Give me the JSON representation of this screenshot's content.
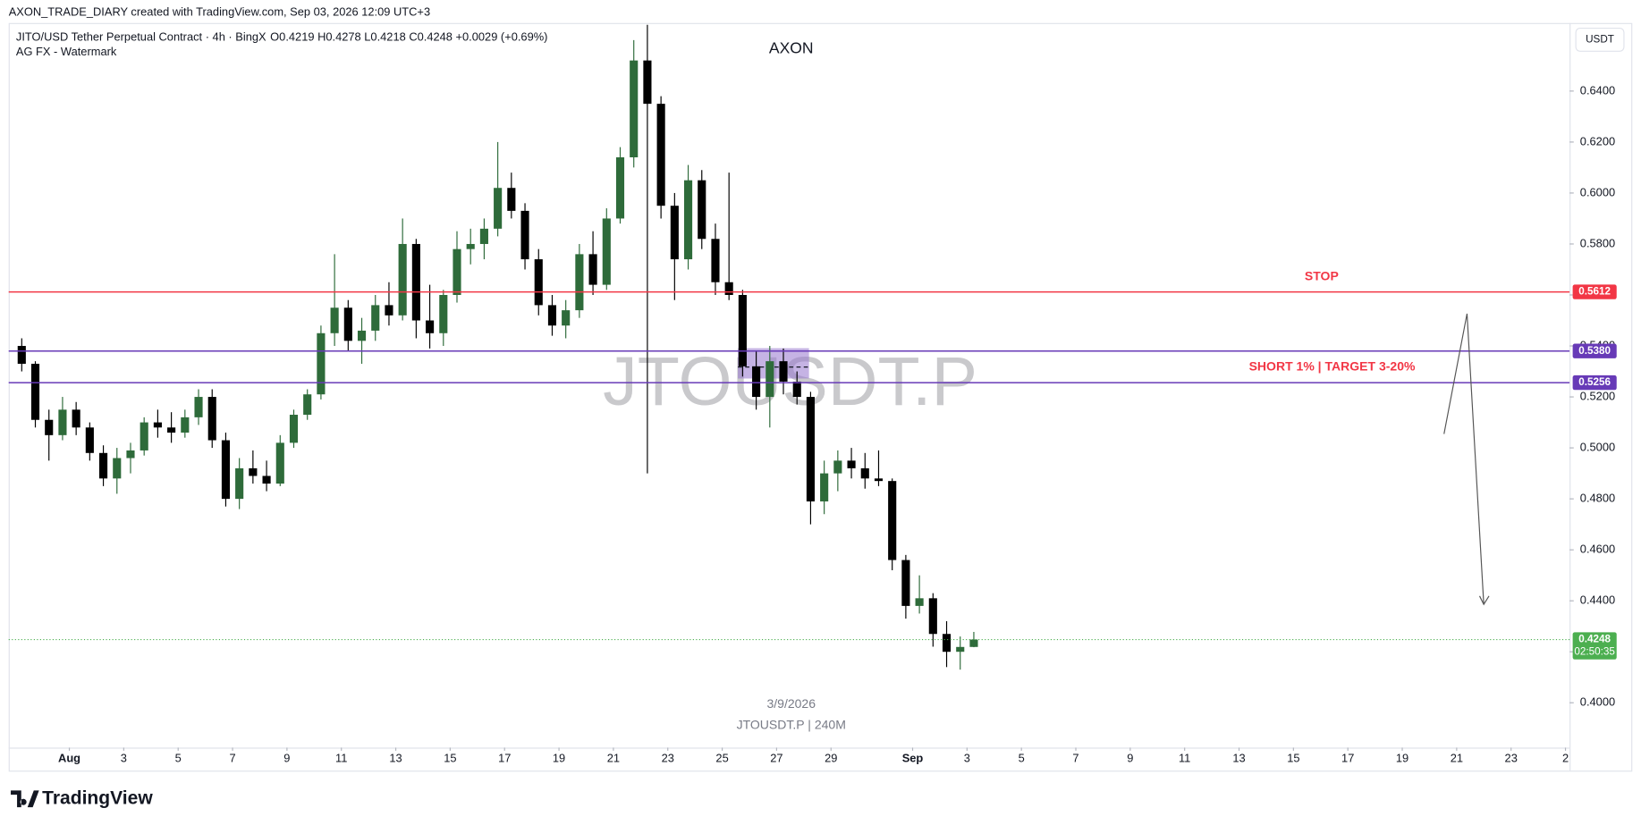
{
  "header": "AXON_TRADE_DIARY created with TradingView.com, Sep 03, 2026 12:09 UTC+3",
  "chart_data": {
    "type": "candlestick",
    "symbol_line": "JITO/USD Tether Perpetual Contract · 4h · BingX",
    "ohlc_line": "O0.4219 H0.4278 L0.4218 C0.4248 +0.0029 (+0.69%)",
    "indicator": "AG FX - Watermark",
    "title": "AXON",
    "watermark": "JTOUSDT.P",
    "date_caption": "3/9/2026",
    "symbol_caption": "JTOUSDT.P | 240M",
    "currency": "USDT",
    "brand": "TradingView",
    "up_color": "#2e6b3a",
    "down_color": "#000000",
    "x": [
      -0.75,
      -0.25,
      0.25,
      0.75,
      1.25,
      1.75,
      2.25,
      2.75,
      3.25,
      3.75,
      4.25,
      4.75,
      5.25,
      5.75,
      6.25,
      6.75,
      7.25,
      7.75,
      8.25,
      8.75,
      9.25,
      9.75,
      10.25,
      10.75,
      11.25,
      11.75,
      12.25,
      12.75,
      13.25,
      13.75,
      14.25,
      14.75,
      15.25,
      15.75,
      16.25,
      16.75,
      17.25,
      17.75,
      18.25,
      18.75,
      19.25,
      19.75,
      20.25,
      20.75,
      21.25,
      21.75,
      22.25,
      22.75,
      23.25,
      23.75,
      24.25,
      24.75,
      25.25,
      25.75,
      26.25,
      26.75,
      27.25,
      27.75,
      28.25,
      28.75,
      29.25,
      29.75,
      30.25,
      30.75,
      31.25,
      31.75,
      32.25,
      32.75,
      33.25,
      33.75,
      34.25
    ],
    "open": [
      0.54,
      0.533,
      0.511,
      0.505,
      0.515,
      0.508,
      0.498,
      0.488,
      0.496,
      0.499,
      0.51,
      0.508,
      0.506,
      0.512,
      0.52,
      0.503,
      0.48,
      0.492,
      0.489,
      0.486,
      0.502,
      0.513,
      0.521,
      0.545,
      0.555,
      0.542,
      0.546,
      0.556,
      0.552,
      0.58,
      0.55,
      0.545,
      0.56,
      0.578,
      0.58,
      0.586,
      0.602,
      0.593,
      0.574,
      0.556,
      0.548,
      0.554,
      0.576,
      0.564,
      0.59,
      0.614,
      0.652,
      0.635,
      0.595,
      0.574,
      0.605,
      0.582,
      0.565,
      0.56,
      0.532,
      0.52,
      0.534,
      0.526,
      0.52,
      0.479,
      0.49,
      0.495,
      0.492,
      0.488,
      0.487,
      0.456,
      0.438,
      0.441,
      0.427,
      0.42,
      0.4219
    ],
    "high": [
      0.543,
      0.534,
      0.515,
      0.52,
      0.518,
      0.51,
      0.501,
      0.5,
      0.502,
      0.512,
      0.515,
      0.514,
      0.515,
      0.523,
      0.523,
      0.506,
      0.496,
      0.499,
      0.495,
      0.505,
      0.515,
      0.523,
      0.548,
      0.576,
      0.558,
      0.551,
      0.56,
      0.565,
      0.59,
      0.582,
      0.564,
      0.562,
      0.585,
      0.586,
      0.59,
      0.62,
      0.608,
      0.596,
      0.578,
      0.56,
      0.558,
      0.58,
      0.585,
      0.594,
      0.618,
      0.66,
      0.666,
      0.638,
      0.6,
      0.611,
      0.609,
      0.588,
      0.608,
      0.562,
      0.538,
      0.54,
      0.539,
      0.53,
      0.522,
      0.495,
      0.499,
      0.5,
      0.498,
      0.499,
      0.488,
      0.458,
      0.45,
      0.443,
      0.432,
      0.426,
      0.4278
    ],
    "low": [
      0.53,
      0.508,
      0.495,
      0.503,
      0.505,
      0.495,
      0.485,
      0.482,
      0.49,
      0.497,
      0.504,
      0.502,
      0.504,
      0.509,
      0.5,
      0.477,
      0.476,
      0.486,
      0.483,
      0.485,
      0.5,
      0.511,
      0.519,
      0.54,
      0.538,
      0.533,
      0.542,
      0.548,
      0.55,
      0.543,
      0.539,
      0.54,
      0.557,
      0.572,
      0.574,
      0.583,
      0.59,
      0.57,
      0.552,
      0.544,
      0.543,
      0.551,
      0.56,
      0.562,
      0.588,
      0.61,
      0.49,
      0.59,
      0.558,
      0.57,
      0.578,
      0.56,
      0.558,
      0.528,
      0.515,
      0.508,
      0.521,
      0.517,
      0.47,
      0.474,
      0.483,
      0.488,
      0.484,
      0.485,
      0.452,
      0.433,
      0.435,
      0.422,
      0.414,
      0.413,
      0.4218
    ],
    "close": [
      0.533,
      0.511,
      0.505,
      0.515,
      0.508,
      0.498,
      0.488,
      0.496,
      0.499,
      0.51,
      0.508,
      0.506,
      0.512,
      0.52,
      0.503,
      0.48,
      0.492,
      0.489,
      0.486,
      0.502,
      0.513,
      0.521,
      0.545,
      0.555,
      0.542,
      0.546,
      0.556,
      0.552,
      0.58,
      0.55,
      0.545,
      0.56,
      0.578,
      0.58,
      0.586,
      0.602,
      0.593,
      0.574,
      0.556,
      0.548,
      0.554,
      0.576,
      0.564,
      0.59,
      0.614,
      0.652,
      0.635,
      0.595,
      0.574,
      0.605,
      0.582,
      0.565,
      0.56,
      0.532,
      0.52,
      0.534,
      0.526,
      0.52,
      0.479,
      0.49,
      0.495,
      0.492,
      0.488,
      0.487,
      0.456,
      0.438,
      0.441,
      0.427,
      0.42,
      0.4219,
      0.4248
    ],
    "xlim": [
      -1.23,
      56.15
    ],
    "xticks": [
      {
        "value": 1,
        "label": "Aug"
      },
      3,
      5,
      7,
      9,
      11,
      13,
      15,
      17,
      19,
      21,
      23,
      25,
      27,
      29,
      {
        "value": 32,
        "label": "Sep"
      },
      {
        "value": 34,
        "label": "3"
      },
      {
        "value": 36,
        "label": "5"
      },
      {
        "value": 38,
        "label": "7"
      },
      {
        "value": 40,
        "label": "9"
      },
      {
        "value": 42,
        "label": "11"
      },
      {
        "value": 44,
        "label": "13"
      },
      {
        "value": 46,
        "label": "15"
      },
      {
        "value": 48,
        "label": "17"
      },
      {
        "value": 50,
        "label": "19"
      },
      {
        "value": 52,
        "label": "21"
      },
      {
        "value": 54,
        "label": "23"
      },
      {
        "value": 56,
        "label": "2"
      }
    ],
    "ylim": [
      0.3824,
      0.6667
    ],
    "yticks": [
      {
        "value": 0.4,
        "label": "0.4000"
      },
      {
        "value": 0.42,
        "label": "0.4200"
      },
      {
        "value": 0.44,
        "label": "0.4400"
      },
      {
        "value": 0.46,
        "label": "0.4600"
      },
      {
        "value": 0.48,
        "label": "0.4800"
      },
      {
        "value": 0.5,
        "label": "0.5000"
      },
      {
        "value": 0.52,
        "label": "0.5200"
      },
      {
        "value": 0.54,
        "label": "0.5400"
      },
      {
        "value": 0.56,
        "label": "0.5600"
      },
      {
        "value": 0.58,
        "label": "0.5800"
      },
      {
        "value": 0.6,
        "label": "0.6000"
      },
      {
        "value": 0.62,
        "label": "0.6200"
      },
      {
        "value": 0.64,
        "label": "0.6400"
      }
    ],
    "levels": [
      {
        "value": 0.5612,
        "color": "#f23645",
        "style": "solid"
      },
      {
        "value": 0.538,
        "label": "0.5380",
        "color": "#673ab7",
        "style": "solid"
      },
      {
        "value": 0.5256,
        "color": "#673ab7",
        "style": "solid"
      },
      {
        "value": 0.4248,
        "color": "#4caf50",
        "style": "dotted",
        "countdown": "02:50:35"
      }
    ],
    "annotations": [
      {
        "text": "STOP",
        "color": "#f23645"
      },
      {
        "text": "SHORT 1% | TARGET 3-20%",
        "color": "#f23645"
      }
    ]
  }
}
